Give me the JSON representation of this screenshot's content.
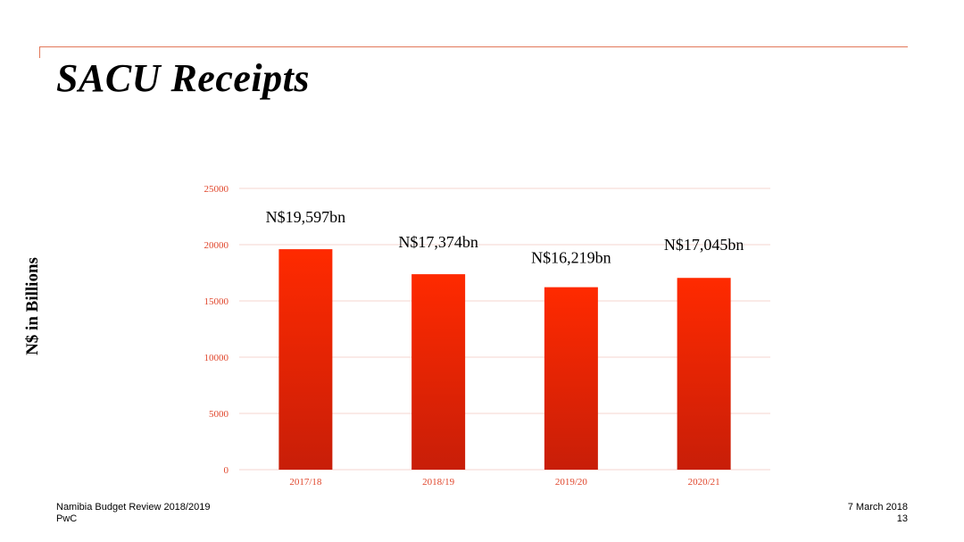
{
  "slide": {
    "title": "SACU Receipts",
    "footer_left_line1": "Namibia Budget Review 2018/2019",
    "footer_left_line2": "PwC",
    "footer_right_line1": "7 March 2018",
    "footer_right_line2": "13"
  },
  "colors": {
    "accent_rule": "#e2785a",
    "bar_top": "#ff2a00",
    "bar_bottom": "#c81e08",
    "tick_text": "#e0462c",
    "grid": "#f6d6cf"
  },
  "chart_data": {
    "type": "bar",
    "categories": [
      "2017/18",
      "2018/19",
      "2019/20",
      "2020/21"
    ],
    "values": [
      19597,
      17374,
      16219,
      17045
    ],
    "data_labels": [
      "N$19,597bn",
      "N$17,374bn",
      "N$16,219bn",
      "N$17,045bn"
    ],
    "yticks": [
      "0",
      "5000",
      "10000",
      "15000",
      "20000",
      "25000"
    ],
    "ylim": [
      0,
      25000
    ],
    "ylabel": "N$ in Billions",
    "title": "",
    "grid": true,
    "legend": "none"
  }
}
